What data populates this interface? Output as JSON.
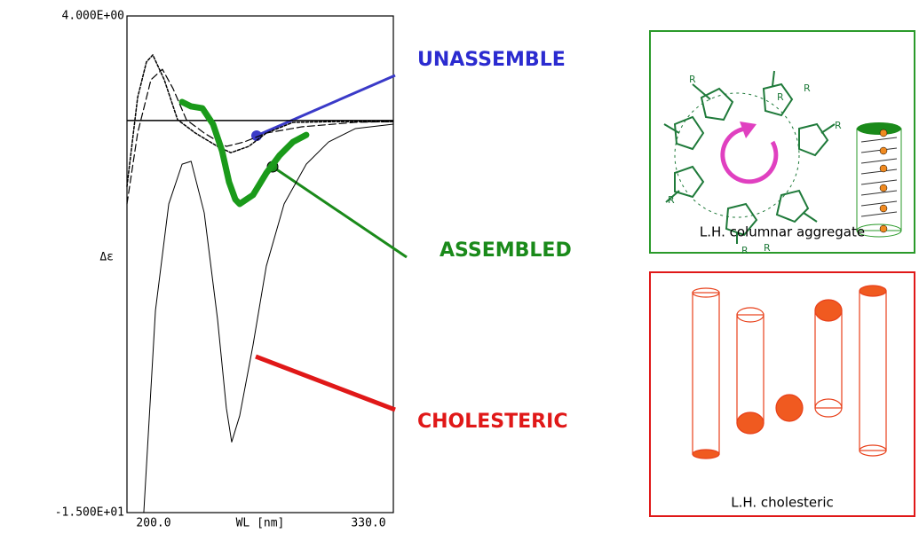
{
  "chart_data": {
    "type": "line",
    "x_label": "WL [nm]",
    "y_label": "Δε",
    "xlim": [
      200,
      330
    ],
    "ylim": [
      -15,
      4
    ],
    "xticks": [
      {
        "value": 200,
        "label": "200.0"
      },
      {
        "value": 330,
        "label": "330.0"
      }
    ],
    "yticks": [
      {
        "value": 4,
        "label": "4.000E+00"
      },
      {
        "value": -15,
        "label": "-1.500E+01"
      }
    ],
    "zero_line": true,
    "series": [
      {
        "color": "#000000",
        "line_style": "solid",
        "line_width": 1,
        "x": [
          208.2,
          213.9,
          220.4,
          226.9,
          231.3,
          237.7,
          244.2,
          248.5,
          251.1,
          255.0,
          261.5,
          268.0,
          276.7,
          287.5,
          298.4,
          311.4,
          330
        ],
        "values": [
          -15,
          -7.27,
          -3.19,
          -1.67,
          -1.56,
          -3.53,
          -7.6,
          -11.0,
          -12.3,
          -11.3,
          -8.6,
          -5.57,
          -3.19,
          -1.67,
          -0.82,
          -0.31,
          -0.14
        ]
      },
      {
        "color": "#000000",
        "line_style": "dashed",
        "line_width": 1.2,
        "x": [
          200,
          205.2,
          211.7,
          217.3,
          222.5,
          229.0,
          237.7,
          248.5,
          257.2,
          268.0,
          285.4,
          311.4,
          330
        ],
        "values": [
          -3.19,
          -0.48,
          1.56,
          1.96,
          1.22,
          0.03,
          -0.48,
          -0.99,
          -0.82,
          -0.48,
          -0.24,
          -0.07,
          -0.04
        ]
      },
      {
        "color": "#000000",
        "line_style": "dotted",
        "line_width": 1.5,
        "x": [
          200,
          205.2,
          209.5,
          212.6,
          218.2,
          224.7,
          233.4,
          244.2,
          250.7,
          259.4,
          268.0,
          281.0,
          302.7,
          330
        ],
        "values": [
          -2.52,
          0.88,
          2.24,
          2.51,
          1.56,
          0.03,
          -0.48,
          -0.99,
          -1.23,
          -0.99,
          -0.48,
          -0.07,
          -0.04,
          -0.04
        ]
      },
      {
        "color": "#1a9a1a",
        "line_style": "solid",
        "line_width": 7,
        "x": [
          226.9,
          231.3,
          236.8,
          242.0,
          246.4,
          249.8,
          252.9,
          255.0,
          261.5,
          268.0,
          274.5,
          281.0,
          287.5
        ],
        "values": [
          0.71,
          0.54,
          0.47,
          -0.14,
          -1.16,
          -2.35,
          -3.02,
          -3.19,
          -2.85,
          -2.01,
          -1.33,
          -0.82,
          -0.55
        ]
      }
    ],
    "annotations": [
      {
        "text": "UNASSEMBLE",
        "color": "#2b2bd0"
      },
      {
        "text": "ASSEMBLED",
        "color": "#1a8a1a"
      },
      {
        "text": "CHOLESTERIC",
        "color": "#e01818"
      }
    ]
  },
  "panels": [
    {
      "caption": "L.H. columnar aggregate",
      "substituent_label": "R"
    },
    {
      "caption": "L.H. cholesteric"
    }
  ]
}
